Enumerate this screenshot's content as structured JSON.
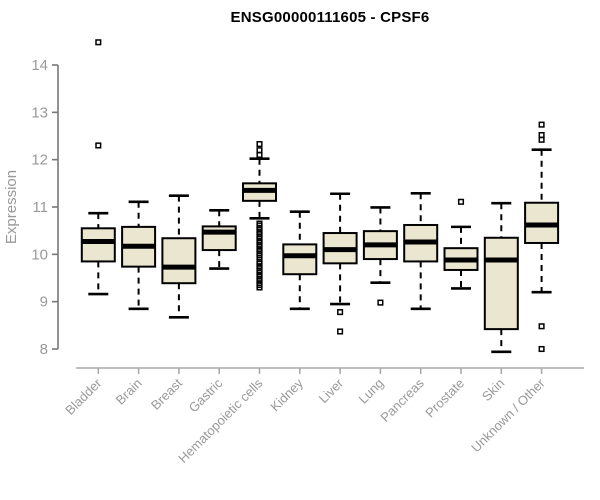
{
  "title": "ENSG00000111605 - CPSF6",
  "colors": {
    "title": "#000000",
    "box_fill": "#ebe6cf",
    "box_stroke": "#000000",
    "median": "#000000",
    "whisker": "#000000",
    "outlier": "#000000",
    "axis_text": "#999999",
    "y_axis": "#787878",
    "x_axis": "#aaaaaa",
    "background": "#ffffff"
  },
  "chart_data": {
    "type": "boxplot",
    "title": "ENSG00000111605 - CPSF6",
    "xlabel": "",
    "ylabel": "Expression",
    "ylim": [
      8,
      14
    ],
    "yticks": [
      8,
      9,
      10,
      11,
      12,
      13,
      14
    ],
    "grid": false,
    "legend": "none",
    "categories": [
      "Bladder",
      "Brain",
      "Breast",
      "Gastric",
      "Hematopoietic cells",
      "Kidney",
      "Liver",
      "Lung",
      "Pancreas",
      "Prostate",
      "Skin",
      "Unknown / Other"
    ],
    "series": [
      {
        "name": "Bladder",
        "whisker_low": 9.16,
        "q1": 9.85,
        "median": 10.27,
        "q3": 10.55,
        "whisker_high": 10.87,
        "outliers": [
          12.3,
          14.48
        ]
      },
      {
        "name": "Brain",
        "whisker_low": 8.85,
        "q1": 9.74,
        "median": 10.17,
        "q3": 10.58,
        "whisker_high": 11.11,
        "outliers": []
      },
      {
        "name": "Breast",
        "whisker_low": 8.67,
        "q1": 9.39,
        "median": 9.73,
        "q3": 10.34,
        "whisker_high": 11.24,
        "outliers": []
      },
      {
        "name": "Gastric",
        "whisker_low": 9.7,
        "q1": 10.09,
        "median": 10.47,
        "q3": 10.59,
        "whisker_high": 10.93,
        "outliers": []
      },
      {
        "name": "Hematopoietic cells",
        "whisker_low": 10.76,
        "q1": 11.13,
        "median": 11.35,
        "q3": 11.5,
        "whisker_high": 12.02,
        "outliers": [
          9.3,
          9.35,
          9.39,
          9.44,
          9.48,
          9.53,
          9.57,
          9.62,
          9.66,
          9.71,
          9.75,
          9.8,
          9.84,
          9.93,
          9.98,
          10.02,
          10.07,
          10.11,
          10.16,
          10.2,
          10.25,
          10.29,
          10.34,
          10.38,
          10.43,
          10.47,
          10.52,
          10.56,
          10.61,
          10.65,
          12.1,
          12.2,
          12.33
        ]
      },
      {
        "name": "Kidney",
        "whisker_low": 8.85,
        "q1": 9.58,
        "median": 9.97,
        "q3": 10.21,
        "whisker_high": 10.9,
        "outliers": []
      },
      {
        "name": "Liver",
        "whisker_low": 8.95,
        "q1": 9.81,
        "median": 10.1,
        "q3": 10.45,
        "whisker_high": 11.28,
        "outliers": [
          8.78,
          8.37
        ]
      },
      {
        "name": "Lung",
        "whisker_low": 9.4,
        "q1": 9.9,
        "median": 10.2,
        "q3": 10.49,
        "whisker_high": 10.99,
        "outliers": [
          8.98
        ]
      },
      {
        "name": "Pancreas",
        "whisker_low": 8.85,
        "q1": 9.85,
        "median": 10.26,
        "q3": 10.62,
        "whisker_high": 11.29,
        "outliers": []
      },
      {
        "name": "Prostate",
        "whisker_low": 9.28,
        "q1": 9.67,
        "median": 9.88,
        "q3": 10.13,
        "whisker_high": 10.58,
        "outliers": [
          11.11
        ]
      },
      {
        "name": "Skin",
        "whisker_low": 7.94,
        "q1": 8.42,
        "median": 9.88,
        "q3": 10.35,
        "whisker_high": 11.08,
        "outliers": []
      },
      {
        "name": "Unknown / Other",
        "whisker_low": 9.2,
        "q1": 10.24,
        "median": 10.62,
        "q3": 11.09,
        "whisker_high": 12.21,
        "outliers": [
          8.0,
          8.48,
          12.42,
          12.52,
          12.74
        ]
      }
    ]
  }
}
